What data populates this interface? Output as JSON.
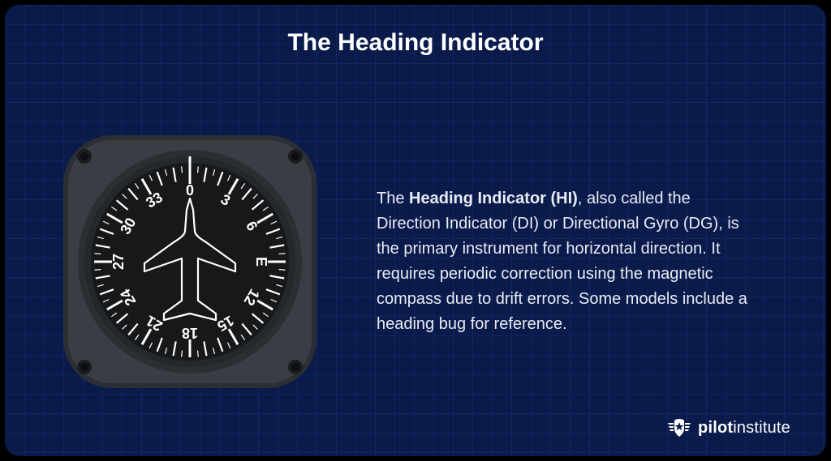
{
  "card": {
    "title": "The Heading Indicator",
    "background_color": "#0a1a4a",
    "grid_color": "#13255a",
    "border_radius": 18
  },
  "description": {
    "bold_lead": "Heading Indicator (HI)",
    "text_before": "The ",
    "text_after": ", also called the Direction Indicator (DI) or Directional Gyro (DG), is the primary instrument for horizontal direction. It requires periodic correction using the magnetic compass due to drift errors. Some models include a heading bug for reference.",
    "font_size": 20,
    "color": "#e8ecf4"
  },
  "gauge": {
    "type": "heading_indicator",
    "bezel_outer_color": "#2b2f34",
    "bezel_inner_color": "#3a3e44",
    "face_color": "#17181a",
    "tick_color": "#ffffff",
    "label_color": "#ffffff",
    "airplane_outline_color": "#ffffff",
    "screw_color": "#1a1c1f",
    "lubber_line_color": "#ffffff",
    "labels": [
      {
        "text": "0",
        "angle_deg": 0
      },
      {
        "text": "3",
        "angle_deg": 30
      },
      {
        "text": "6",
        "angle_deg": 60
      },
      {
        "text": "E",
        "angle_deg": 90
      },
      {
        "text": "12",
        "angle_deg": 120
      },
      {
        "text": "15",
        "angle_deg": 150
      },
      {
        "text": "18",
        "angle_deg": 180
      },
      {
        "text": "21",
        "angle_deg": 210
      },
      {
        "text": "24",
        "angle_deg": 240
      },
      {
        "text": "27",
        "angle_deg": 270
      },
      {
        "text": "30",
        "angle_deg": 300
      },
      {
        "text": "33",
        "angle_deg": 330
      }
    ],
    "major_tick_every_deg": 10,
    "minor_tick_every_deg": 5,
    "label_every_deg": 30,
    "label_fontsize": 18
  },
  "brand": {
    "name_light": "pilot",
    "name_bold": "institute",
    "shield_color": "#ffffff",
    "star_color": "#0a1a4a"
  }
}
